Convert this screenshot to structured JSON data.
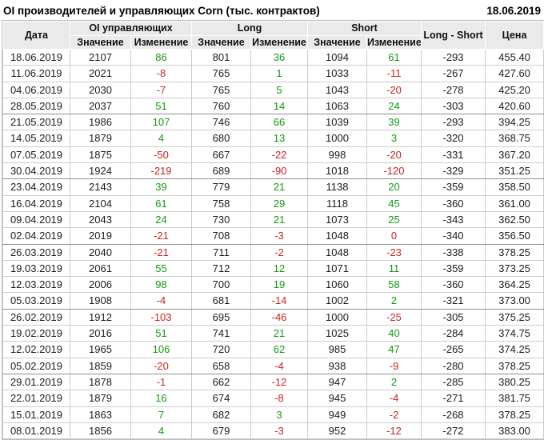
{
  "header": {
    "title": "OI производителей и управляющих Corn (тыс. контрактов)",
    "date": "18.06.2019"
  },
  "colors": {
    "up": "#119b11",
    "down": "#cc2222"
  },
  "table": {
    "col_date": "Дата",
    "groups": [
      {
        "label": "OI управляющих"
      },
      {
        "label": "Long"
      },
      {
        "label": "Short"
      }
    ],
    "sub_value": "Значение",
    "sub_change": "Изменение",
    "col_long_short": "Long - Short",
    "col_price": "Цена",
    "rows": [
      [
        "18.06.2019",
        "2107",
        [
          "86",
          "up"
        ],
        "801",
        [
          "36",
          "up"
        ],
        "1094",
        [
          "61",
          "up"
        ],
        "-293",
        "455.40"
      ],
      [
        "11.06.2019",
        "2021",
        [
          "-8",
          "dn"
        ],
        "765",
        [
          "1",
          "up"
        ],
        "1033",
        [
          "-11",
          "dn"
        ],
        "-267",
        "427.60"
      ],
      [
        "04.06.2019",
        "2030",
        [
          "-7",
          "dn"
        ],
        "765",
        [
          "5",
          "up"
        ],
        "1043",
        [
          "-20",
          "dn"
        ],
        "-278",
        "425.20"
      ],
      [
        "28.05.2019",
        "2037",
        [
          "51",
          "up"
        ],
        "760",
        [
          "14",
          "up"
        ],
        "1063",
        [
          "24",
          "up"
        ],
        "-303",
        "420.60"
      ],
      [
        "21.05.2019",
        "1986",
        [
          "107",
          "up"
        ],
        "746",
        [
          "66",
          "up"
        ],
        "1039",
        [
          "39",
          "up"
        ],
        "-293",
        "394.25"
      ],
      [
        "14.05.2019",
        "1879",
        [
          "4",
          "up"
        ],
        "680",
        [
          "13",
          "up"
        ],
        "1000",
        [
          "3",
          "up"
        ],
        "-320",
        "368.75"
      ],
      [
        "07.05.2019",
        "1875",
        [
          "-50",
          "dn"
        ],
        "667",
        [
          "-22",
          "dn"
        ],
        "998",
        [
          "-20",
          "dn"
        ],
        "-331",
        "367.20"
      ],
      [
        "30.04.2019",
        "1924",
        [
          "-219",
          "dn"
        ],
        "689",
        [
          "-90",
          "dn"
        ],
        "1018",
        [
          "-120",
          "dn"
        ],
        "-329",
        "351.25"
      ],
      [
        "23.04.2019",
        "2143",
        [
          "39",
          "up"
        ],
        "779",
        [
          "21",
          "up"
        ],
        "1138",
        [
          "20",
          "up"
        ],
        "-359",
        "358.50"
      ],
      [
        "16.04.2019",
        "2104",
        [
          "61",
          "up"
        ],
        "758",
        [
          "29",
          "up"
        ],
        "1118",
        [
          "45",
          "up"
        ],
        "-360",
        "361.00"
      ],
      [
        "09.04.2019",
        "2043",
        [
          "24",
          "up"
        ],
        "730",
        [
          "21",
          "up"
        ],
        "1073",
        [
          "25",
          "up"
        ],
        "-343",
        "362.50"
      ],
      [
        "02.04.2019",
        "2019",
        [
          "-21",
          "dn"
        ],
        "708",
        [
          "-3",
          "dn"
        ],
        "1048",
        [
          "0",
          "dn"
        ],
        "-340",
        "356.50"
      ],
      [
        "26.03.2019",
        "2040",
        [
          "-21",
          "dn"
        ],
        "711",
        [
          "-2",
          "dn"
        ],
        "1048",
        [
          "-23",
          "dn"
        ],
        "-338",
        "378.25"
      ],
      [
        "19.03.2019",
        "2061",
        [
          "55",
          "up"
        ],
        "712",
        [
          "12",
          "up"
        ],
        "1071",
        [
          "11",
          "up"
        ],
        "-359",
        "373.25"
      ],
      [
        "12.03.2019",
        "2006",
        [
          "98",
          "up"
        ],
        "700",
        [
          "19",
          "up"
        ],
        "1060",
        [
          "58",
          "up"
        ],
        "-360",
        "364.25"
      ],
      [
        "05.03.2019",
        "1908",
        [
          "-4",
          "dn"
        ],
        "681",
        [
          "-14",
          "dn"
        ],
        "1002",
        [
          "2",
          "up"
        ],
        "-321",
        "373.00"
      ],
      [
        "26.02.2019",
        "1912",
        [
          "-103",
          "dn"
        ],
        "695",
        [
          "-46",
          "dn"
        ],
        "1000",
        [
          "-25",
          "dn"
        ],
        "-305",
        "375.25"
      ],
      [
        "19.02.2019",
        "2016",
        [
          "51",
          "up"
        ],
        "741",
        [
          "21",
          "up"
        ],
        "1025",
        [
          "40",
          "up"
        ],
        "-284",
        "374.75"
      ],
      [
        "12.02.2019",
        "1965",
        [
          "106",
          "up"
        ],
        "720",
        [
          "62",
          "up"
        ],
        "985",
        [
          "47",
          "up"
        ],
        "-265",
        "374.25"
      ],
      [
        "05.02.2019",
        "1859",
        [
          "-20",
          "dn"
        ],
        "658",
        [
          "-4",
          "dn"
        ],
        "938",
        [
          "-9",
          "dn"
        ],
        "-280",
        "378.25"
      ],
      [
        "29.01.2019",
        "1878",
        [
          "-1",
          "dn"
        ],
        "662",
        [
          "-12",
          "dn"
        ],
        "947",
        [
          "2",
          "up"
        ],
        "-285",
        "380.25"
      ],
      [
        "22.01.2019",
        "1879",
        [
          "16",
          "up"
        ],
        "674",
        [
          "-8",
          "dn"
        ],
        "945",
        [
          "-4",
          "dn"
        ],
        "-271",
        "381.75"
      ],
      [
        "15.01.2019",
        "1863",
        [
          "7",
          "up"
        ],
        "682",
        [
          "3",
          "up"
        ],
        "949",
        [
          "-2",
          "dn"
        ],
        "-268",
        "378.25"
      ],
      [
        "08.01.2019",
        "1856",
        [
          "4",
          "up"
        ],
        "679",
        [
          "-3",
          "dn"
        ],
        "952",
        [
          "-12",
          "dn"
        ],
        "-272",
        "383.00"
      ]
    ]
  }
}
